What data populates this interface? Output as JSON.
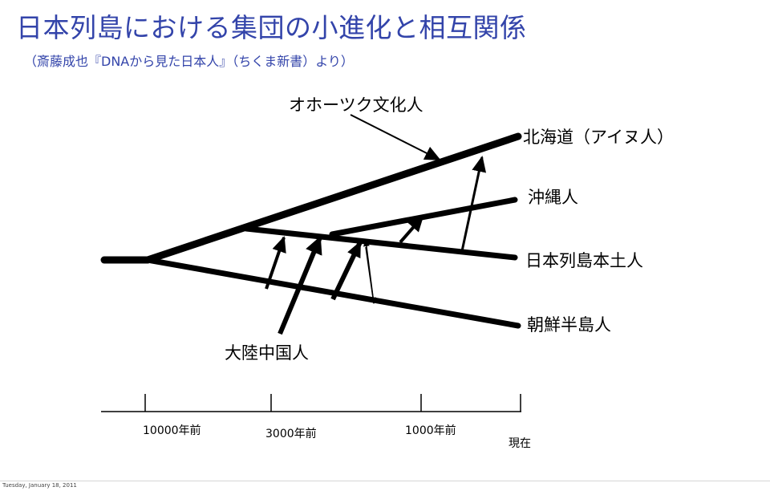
{
  "slide": {
    "title": "日本列島における集団の小進化と相互関係",
    "subtitle": "（斎藤成也『DNAから見た日本人』（ちくま新書）より）",
    "footer_date": "Tuesday, January 18, 2011",
    "accent_color": "#3344aa"
  },
  "diagram": {
    "labels": {
      "okhotsk": "オホーツク文化人",
      "ainu": "北海道（アイヌ人）",
      "okinawa": "沖縄人",
      "mainland": "日本列島本土人",
      "korea": "朝鮮半島人",
      "continent": "大陸中国人"
    },
    "timeline": {
      "ticks": [
        "10000年前",
        "3000年前",
        "1000年前",
        "現在"
      ]
    }
  }
}
